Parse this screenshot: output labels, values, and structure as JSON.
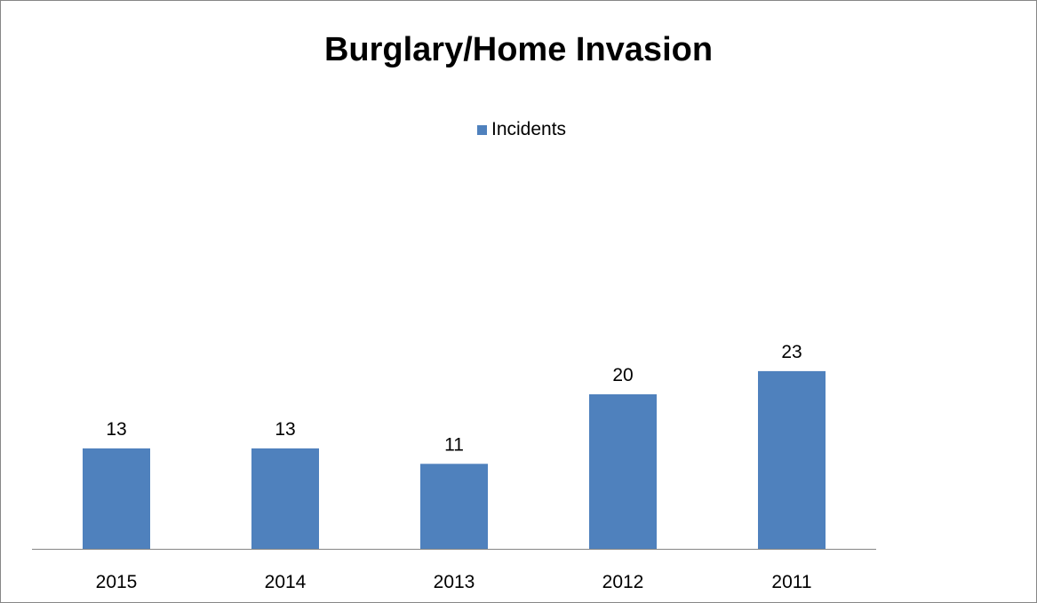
{
  "colors": {
    "bar": "#4F81BD",
    "axis": "#868686"
  },
  "chart_data": {
    "type": "bar",
    "title": "Burglary/Home Invasion",
    "xlabel": "",
    "ylabel": "",
    "categories": [
      "2015",
      "2014",
      "2013",
      "2012",
      "2011"
    ],
    "series": [
      {
        "name": "Incidents",
        "values": [
          13,
          13,
          11,
          20,
          23
        ]
      }
    ],
    "ylim": [
      0,
      26
    ],
    "grid": false,
    "legend_position": "top-center",
    "data_labels": true
  }
}
